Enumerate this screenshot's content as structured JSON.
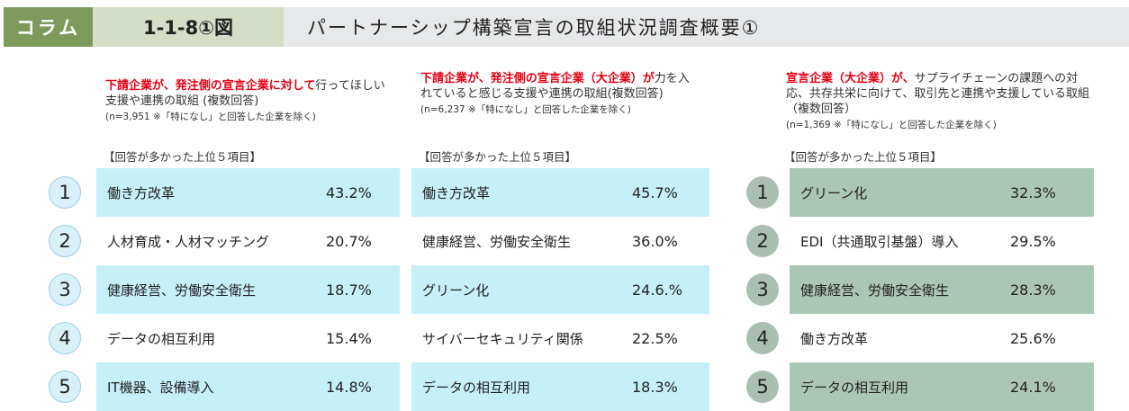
{
  "header": {
    "tag": "コラム",
    "figure_no": "1-1-8①図",
    "title": "パートナーシップ構築宣言の取組状況調査概要①"
  },
  "colors": {
    "tag_bg": "#7b9a5b",
    "blue_bar": "#c6eff9",
    "green_bar": "#aac7b5",
    "highlight": "#e60012"
  },
  "panels": [
    {
      "red": "下請企業が、発注側の宣言企業に対して",
      "desc": "行ってほしい支援や連携の取組 (複数回答)",
      "note": "(n=3,951 ※「特になし」と回答した企業を除く)",
      "top5": "【回答が多かった上位５項目】",
      "items": [
        {
          "rank": "1",
          "label": "働き方改革",
          "pct": "43.2%"
        },
        {
          "rank": "2",
          "label": "人材育成・人材マッチング",
          "pct": "20.7%"
        },
        {
          "rank": "3",
          "label": "健康経営、労働安全衛生",
          "pct": "18.7%"
        },
        {
          "rank": "4",
          "label": "データの相互利用",
          "pct": "15.4%"
        },
        {
          "rank": "5",
          "label": "IT機器、設備導入",
          "pct": "14.8%"
        }
      ]
    },
    {
      "red": "下請企業が、発注側の宣言企業（大企業）が",
      "desc": "力を入れていると感じる支援や連携の取組(複数回答)",
      "note": "(n=6,237 ※「特になし」と回答した企業を除く)",
      "top5": "【回答が多かった上位５項目】",
      "items": [
        {
          "label": "働き方改革",
          "pct": "45.7%"
        },
        {
          "label": "健康経営、労働安全衛生",
          "pct": "36.0%"
        },
        {
          "label": "グリーン化",
          "pct": "24.6.%"
        },
        {
          "label": "サイバーセキュリティ関係",
          "pct": "22.5%"
        },
        {
          "label": "データの相互利用",
          "pct": "18.3%"
        }
      ]
    },
    {
      "red": "宣言企業（大企業）が、",
      "desc": "サプライチェーンの課題への対応、共存共栄に向けて、取引先と連携や支援している取組（複数回答）",
      "note": "(n=1,369 ※「特になし」と回答した企業を除く)",
      "top5": "【回答が多かった上位５項目】",
      "items": [
        {
          "rank": "1",
          "label": "グリーン化",
          "pct": "32.3%"
        },
        {
          "rank": "2",
          "label": "EDI（共通取引基盤）導入",
          "pct": "29.5%"
        },
        {
          "rank": "3",
          "label": "健康経営、労働安全衛生",
          "pct": "28.3%"
        },
        {
          "rank": "4",
          "label": "働き方改革",
          "pct": "25.6%"
        },
        {
          "rank": "5",
          "label": "データの相互利用",
          "pct": "24.1%"
        }
      ]
    }
  ]
}
